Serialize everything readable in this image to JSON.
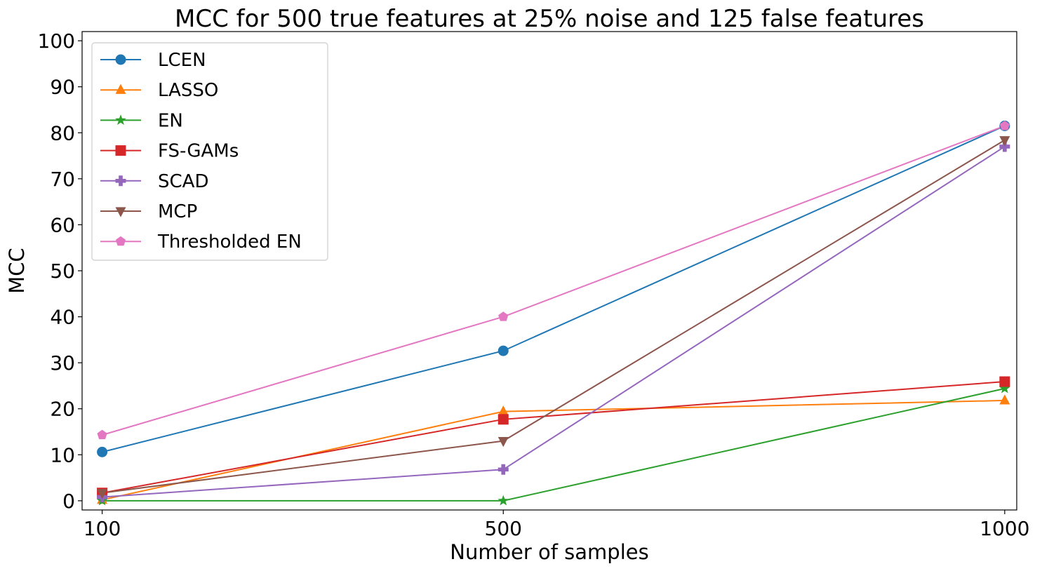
{
  "chart_data": {
    "type": "line",
    "title": "MCC for 500 true features at 25% noise and 125 false features",
    "xlabel": "Number of samples",
    "ylabel": "MCC",
    "x": [
      100,
      500,
      1000
    ],
    "xticks": [
      "100",
      "500",
      "1000"
    ],
    "yticks": [
      "0",
      "10",
      "20",
      "30",
      "40",
      "50",
      "60",
      "70",
      "80",
      "90",
      "100"
    ],
    "xlim": [
      80,
      1012
    ],
    "ylim": [
      -2,
      102
    ],
    "grid": false,
    "legend_position": "top-left",
    "series": [
      {
        "name": "LCEN",
        "values": [
          10.6,
          32.6,
          81.5
        ],
        "color": "#1f77b4",
        "marker": "circle"
      },
      {
        "name": "LASSO",
        "values": [
          0.2,
          19.4,
          21.8
        ],
        "color": "#ff7f0e",
        "marker": "triangle-up"
      },
      {
        "name": "EN",
        "values": [
          0.0,
          0.0,
          24.4
        ],
        "color": "#2ca02c",
        "marker": "star"
      },
      {
        "name": "FS-GAMs",
        "values": [
          1.7,
          17.7,
          25.9
        ],
        "color": "#d62728",
        "marker": "square"
      },
      {
        "name": "SCAD",
        "values": [
          0.8,
          6.8,
          77.0
        ],
        "color": "#9467bd",
        "marker": "plus"
      },
      {
        "name": "MCP",
        "values": [
          1.7,
          13.0,
          78.4
        ],
        "color": "#8c564b",
        "marker": "triangle-down"
      },
      {
        "name": "Thresholded EN",
        "values": [
          14.3,
          40.0,
          81.5
        ],
        "color": "#e377c2",
        "marker": "pentagon"
      }
    ]
  }
}
